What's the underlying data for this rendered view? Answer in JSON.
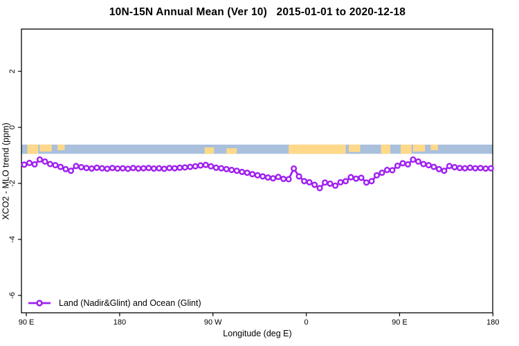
{
  "title": "10N-15N Annual Mean (Ver 10)   2015-01-01 to 2020-12-18",
  "colors": {
    "series": "#A020F0",
    "ocean_band": "#A9C0DD",
    "land_band": "#FFD98A",
    "frame": "#000000"
  },
  "legend": {
    "label": "Land (Nadir&Glint) and Ocean (Glint)"
  },
  "chart_data": {
    "type": "line",
    "title": "10N-15N Annual Mean (Ver 10)   2015-01-01 to 2020-12-18",
    "xlabel": "Longitude (deg E)",
    "ylabel": "XCO2 - MLO trend (ppm)",
    "xlim": [
      85.3,
      539.8
    ],
    "ylim": [
      -6.62,
      3.51
    ],
    "grid": false,
    "legend_position": "bottom-left-inside",
    "x_ticks": [
      {
        "v": 90,
        "label": "90 E"
      },
      {
        "v": 180,
        "label": "180"
      },
      {
        "v": 270,
        "label": "90 W"
      },
      {
        "v": 360,
        "label": "0"
      },
      {
        "v": 450,
        "label": "90 E"
      },
      {
        "v": 540,
        "label": "180"
      }
    ],
    "y_ticks": [
      {
        "v": 2,
        "label": "2"
      },
      {
        "v": 0,
        "label": "0"
      },
      {
        "v": -2,
        "label": "-2"
      },
      {
        "v": -4,
        "label": "-4"
      },
      {
        "v": -6,
        "label": "-6"
      }
    ],
    "map_band": {
      "note": "land/ocean strip drawn across plot near y = -0.8 ppm",
      "value_top": -0.615,
      "value_bottom": -0.945,
      "land_patches": [
        {
          "from": 91,
          "to": 101.5,
          "t": 0,
          "b": 1
        },
        {
          "from": 103,
          "to": 114.5,
          "t": 0,
          "b": 0.75
        },
        {
          "from": 120,
          "to": 127,
          "t": 0,
          "b": 0.6
        },
        {
          "from": 262,
          "to": 271,
          "t": 0.3,
          "b": 1
        },
        {
          "from": 283,
          "to": 293,
          "t": 0.4,
          "b": 1
        },
        {
          "from": 343,
          "to": 398,
          "t": 0,
          "b": 1
        },
        {
          "from": 401,
          "to": 412,
          "t": 0,
          "b": 0.8
        },
        {
          "from": 432,
          "to": 441,
          "t": 0,
          "b": 1
        },
        {
          "from": 451,
          "to": 461.5,
          "t": 0,
          "b": 1
        },
        {
          "from": 463,
          "to": 474.5,
          "t": 0,
          "b": 0.75
        },
        {
          "from": 480,
          "to": 487,
          "t": 0,
          "b": 0.6
        }
      ]
    },
    "series": [
      {
        "name": "Land (Nadir&Glint) and Ocean (Glint)",
        "color": "#A020F0",
        "marker": "open-circle",
        "x": [
          88,
          93,
          98,
          103,
          108,
          113,
          118,
          123,
          128,
          133,
          138,
          143,
          148,
          153,
          158,
          163,
          168,
          173,
          178,
          183,
          188,
          193,
          198,
          203,
          208,
          213,
          218,
          223,
          228,
          233,
          238,
          243,
          248,
          253,
          258,
          263,
          268,
          273,
          278,
          283,
          288,
          293,
          298,
          303,
          308,
          313,
          318,
          323,
          328,
          333,
          338,
          343,
          348,
          353,
          358,
          363,
          368,
          373,
          378,
          383,
          388,
          393,
          398,
          403,
          408,
          413,
          418,
          423,
          428,
          433,
          438,
          443,
          448,
          453,
          458,
          463,
          468,
          473,
          478,
          483,
          488,
          493,
          498,
          503,
          508,
          513,
          518,
          523,
          528,
          533,
          538
        ],
        "y": [
          -1.33,
          -1.27,
          -1.32,
          -1.15,
          -1.22,
          -1.31,
          -1.35,
          -1.41,
          -1.49,
          -1.55,
          -1.38,
          -1.42,
          -1.45,
          -1.47,
          -1.44,
          -1.46,
          -1.48,
          -1.45,
          -1.47,
          -1.46,
          -1.48,
          -1.45,
          -1.47,
          -1.46,
          -1.45,
          -1.47,
          -1.46,
          -1.48,
          -1.45,
          -1.46,
          -1.44,
          -1.43,
          -1.41,
          -1.39,
          -1.36,
          -1.34,
          -1.39,
          -1.44,
          -1.46,
          -1.49,
          -1.52,
          -1.55,
          -1.59,
          -1.62,
          -1.67,
          -1.71,
          -1.75,
          -1.79,
          -1.82,
          -1.77,
          -1.84,
          -1.85,
          -1.47,
          -1.75,
          -1.92,
          -1.96,
          -2.05,
          -2.17,
          -1.97,
          -2.01,
          -2.08,
          -1.96,
          -1.92,
          -1.78,
          -1.83,
          -1.8,
          -1.97,
          -1.92,
          -1.71,
          -1.62,
          -1.52,
          -1.53,
          -1.37,
          -1.28,
          -1.32,
          -1.15,
          -1.22,
          -1.31,
          -1.35,
          -1.41,
          -1.49,
          -1.55,
          -1.38,
          -1.42,
          -1.45,
          -1.46,
          -1.44,
          -1.46,
          -1.45,
          -1.47,
          -1.46
        ]
      }
    ]
  }
}
